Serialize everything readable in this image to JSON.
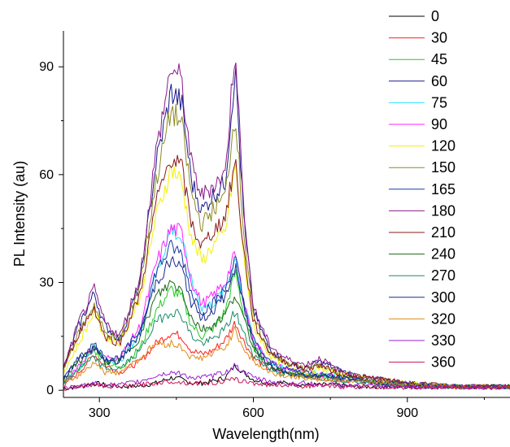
{
  "chart_data": {
    "type": "line",
    "title": "",
    "xlabel": "Wavelength(nm)",
    "ylabel": "PL Intensity (au)",
    "xlim": [
      230,
      1100
    ],
    "ylim": [
      -2,
      100
    ],
    "xticks": [
      300,
      600,
      900
    ],
    "yticks": [
      0,
      30,
      60,
      90
    ],
    "tick_labels_x": [
      "300",
      "600",
      "900"
    ],
    "tick_labels_y": [
      "0",
      "30",
      "60",
      "90"
    ],
    "grid": false,
    "legend_position": "top-right",
    "x": [
      230,
      260,
      290,
      310,
      340,
      380,
      410,
      440,
      460,
      480,
      500,
      520,
      545,
      565,
      580,
      600,
      630,
      660,
      700,
      730,
      760,
      800,
      850,
      900,
      1000,
      1100
    ],
    "series": [
      {
        "name": "0",
        "color": "#000000",
        "values": [
          0.5,
          1,
          2,
          1.5,
          1,
          1.2,
          2,
          3.5,
          3,
          2,
          2,
          2.5,
          3.5,
          7,
          5,
          3,
          2,
          2,
          1.5,
          1.5,
          1.5,
          1,
          1,
          1,
          0.8,
          0.8
        ]
      },
      {
        "name": "30",
        "color": "#ff2020",
        "values": [
          1,
          5,
          10,
          7,
          5,
          8,
          13,
          16,
          15,
          11,
          10,
          11,
          14,
          19,
          14,
          9,
          6,
          5,
          4,
          3.5,
          3,
          2.5,
          2,
          1.5,
          1,
          1
        ]
      },
      {
        "name": "45",
        "color": "#22cc22",
        "values": [
          2,
          6,
          11,
          8,
          6,
          12,
          22,
          28,
          26,
          18,
          15,
          17,
          22,
          33,
          22,
          12,
          7,
          5,
          4,
          4,
          3.5,
          3,
          2,
          1.5,
          1,
          1
        ]
      },
      {
        "name": "60",
        "color": "#1a1a8c",
        "values": [
          6,
          18,
          27,
          18,
          14,
          30,
          63,
          83,
          80,
          58,
          50,
          54,
          58,
          90,
          50,
          22,
          12,
          8,
          6,
          8,
          6,
          4,
          3,
          2,
          1,
          1
        ]
      },
      {
        "name": "75",
        "color": "#22e0ff",
        "values": [
          2,
          6,
          12,
          9,
          8,
          16,
          32,
          45,
          42,
          30,
          23,
          24,
          28,
          37,
          25,
          14,
          8,
          6,
          5,
          4.5,
          4,
          3,
          2,
          1.5,
          1,
          1
        ]
      },
      {
        "name": "90",
        "color": "#ff22ff",
        "values": [
          2,
          7,
          12,
          9,
          9,
          18,
          35,
          45,
          44,
          30,
          24,
          26,
          30,
          38,
          26,
          14,
          8,
          6,
          5,
          4.5,
          4,
          3,
          2,
          1.5,
          1,
          1
        ]
      },
      {
        "name": "120",
        "color": "#f2f200",
        "values": [
          5,
          13,
          22,
          15,
          13,
          26,
          48,
          62,
          58,
          42,
          36,
          40,
          44,
          63,
          38,
          18,
          10,
          7,
          5,
          6,
          5,
          3.5,
          2.5,
          2,
          1,
          1
        ]
      },
      {
        "name": "150",
        "color": "#8b8b22",
        "values": [
          6,
          16,
          24,
          16,
          14,
          30,
          58,
          78,
          74,
          54,
          46,
          50,
          54,
          78,
          46,
          20,
          11,
          8,
          6,
          7,
          5,
          4,
          3,
          2,
          1,
          1
        ]
      },
      {
        "name": "165",
        "color": "#1a3aa8",
        "values": [
          3,
          9,
          13,
          9,
          9,
          17,
          33,
          40,
          38,
          27,
          22,
          24,
          28,
          37,
          25,
          14,
          8,
          6,
          5,
          4.5,
          4,
          3,
          2,
          1.5,
          1,
          1
        ]
      },
      {
        "name": "180",
        "color": "#8b1a8b",
        "values": [
          6,
          19,
          28,
          19,
          15,
          32,
          66,
          90,
          86,
          62,
          54,
          57,
          60,
          97,
          52,
          23,
          13,
          9,
          7,
          9,
          6,
          4,
          3,
          2,
          1,
          1
        ]
      },
      {
        "name": "210",
        "color": "#8b1a1a",
        "values": [
          6,
          16,
          23,
          15,
          13,
          27,
          52,
          65,
          62,
          46,
          40,
          44,
          48,
          64,
          40,
          19,
          11,
          8,
          6,
          7,
          5,
          4,
          3,
          2,
          1,
          1
        ]
      },
      {
        "name": "240",
        "color": "#1a6a1a",
        "values": [
          3,
          8,
          12,
          8,
          8,
          15,
          26,
          30,
          28,
          20,
          17,
          18,
          21,
          27,
          20,
          12,
          7,
          5,
          4,
          4,
          3.5,
          3,
          2,
          1.5,
          1,
          1
        ]
      },
      {
        "name": "270",
        "color": "#1a8b6a",
        "values": [
          2,
          6,
          9,
          6,
          6,
          11,
          19,
          22,
          21,
          15,
          13,
          14,
          17,
          22,
          16,
          10,
          6,
          4.5,
          4,
          3.5,
          3,
          2.5,
          2,
          1.5,
          1,
          1
        ]
      },
      {
        "name": "300",
        "color": "#1a2a8b",
        "values": [
          3,
          9,
          12,
          8,
          8,
          16,
          30,
          36,
          34,
          24,
          20,
          22,
          26,
          34,
          24,
          13,
          7,
          5,
          4,
          4,
          3.5,
          3,
          2,
          1.5,
          1,
          1
        ]
      },
      {
        "name": "320",
        "color": "#e08a1a",
        "values": [
          2,
          4,
          8,
          5,
          5,
          9,
          13,
          13,
          12,
          9,
          9,
          10,
          12,
          17,
          12,
          8,
          5,
          4,
          3.5,
          3,
          3,
          2.5,
          2,
          1.5,
          1,
          1
        ]
      },
      {
        "name": "330",
        "color": "#9a22d0",
        "values": [
          0.5,
          1,
          2,
          1.5,
          1.5,
          2.5,
          4,
          5,
          4.5,
          3.5,
          3.5,
          4,
          5,
          7,
          5,
          3.5,
          2.5,
          2,
          2,
          1.5,
          1.5,
          1.2,
          1,
          1,
          0.8,
          0.8
        ]
      },
      {
        "name": "360",
        "color": "#c8125a",
        "values": [
          0.5,
          1,
          1.5,
          1.2,
          1,
          1.5,
          2,
          2.5,
          2.2,
          2,
          2,
          2,
          2.5,
          3,
          2.5,
          2,
          1.5,
          1.5,
          1.2,
          1.2,
          1,
          1,
          0.8,
          0.8,
          0.8,
          0.8
        ]
      }
    ]
  }
}
